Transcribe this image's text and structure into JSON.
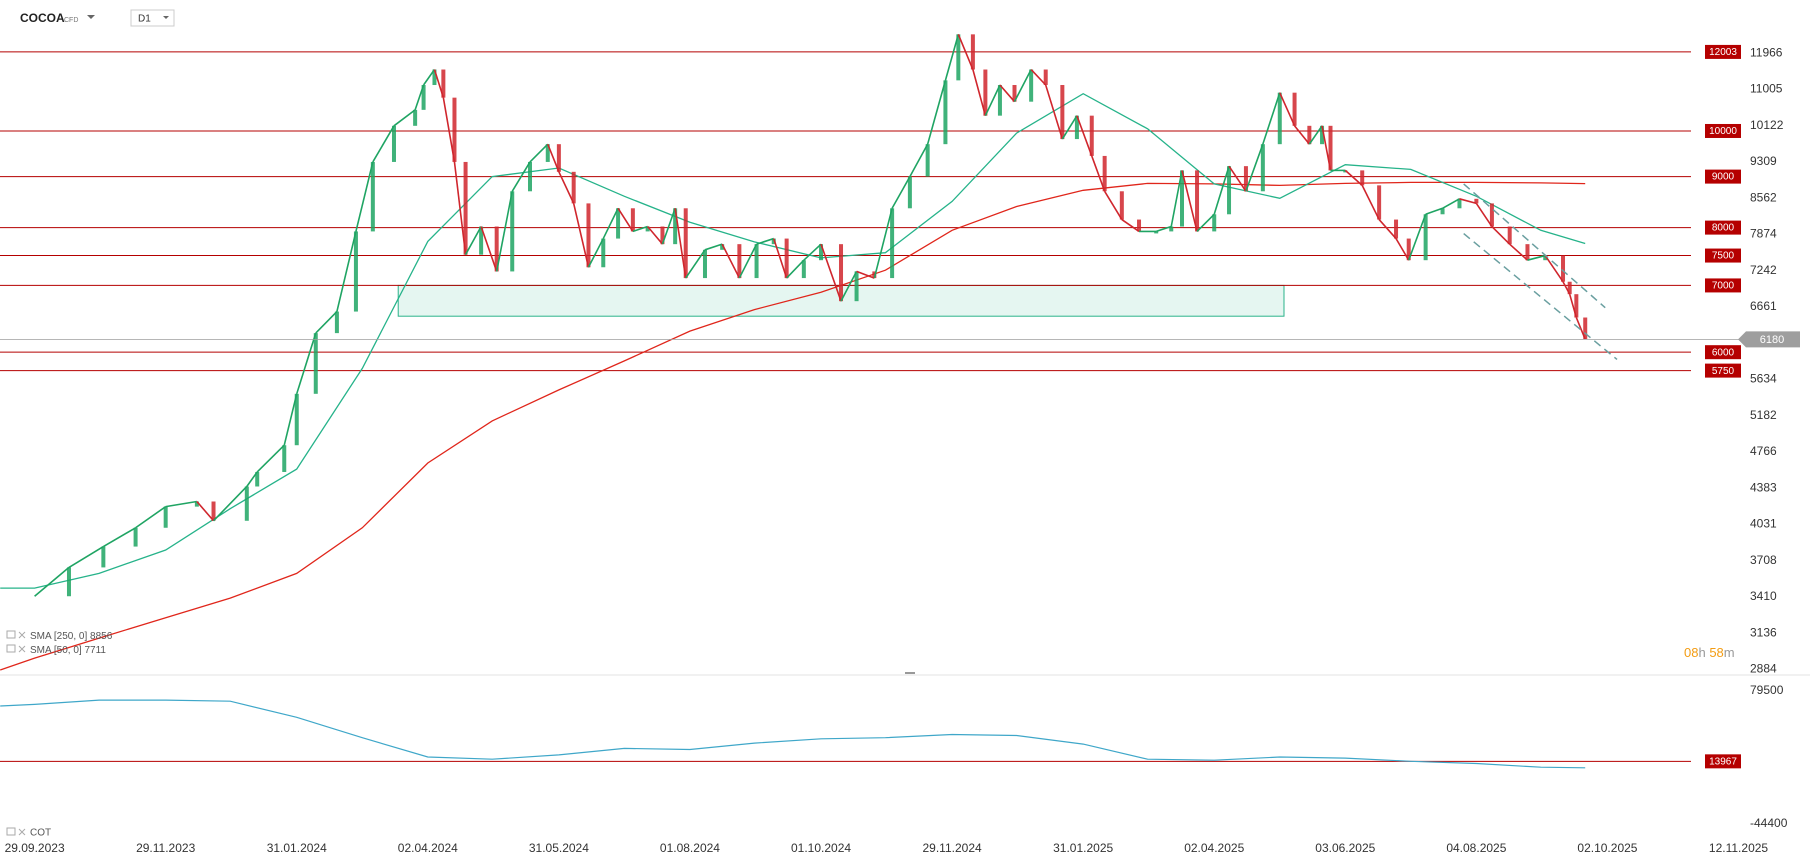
{
  "header": {
    "symbol": "COCOA",
    "instrument": "CFD",
    "timeframe": "D1"
  },
  "countdown": {
    "hours": "08",
    "hours_unit": "h",
    "minutes": "58",
    "minutes_unit": "m"
  },
  "chart_data": [
    {
      "type": "candlestick-line",
      "log_scale": true,
      "ylim": [
        2847,
        13532
      ],
      "yticks": [
        11966,
        11005,
        10122,
        9309,
        8562,
        7874,
        7242,
        6661,
        5634,
        5182,
        4766,
        4383,
        4031,
        3708,
        3410,
        3136,
        2884
      ],
      "xticks": [
        "29.09.2023",
        "29.11.2023",
        "31.01.2024",
        "02.04.2024",
        "31.05.2024",
        "01.08.2024",
        "01.10.2024",
        "29.11.2024",
        "31.01.2025",
        "02.04.2025",
        "03.06.2025",
        "04.08.2025",
        "02.10.2025",
        "12.11.2025"
      ],
      "up_color": "#1fa463",
      "down_color": "#d0262d",
      "last_price": 6180,
      "series": [
        {
          "x": [
            "29.09.2023",
            "15.10.2023",
            "31.10.2023",
            "15.11.2023",
            "29.11.2023",
            "14.12.2023",
            "22.12.2023",
            "07.01.2024",
            "12.01.2024",
            "25.01.2024",
            "31.01.2024",
            "09.02.2024",
            "19.02.2024",
            "28.02.2024",
            "07.03.2024",
            "17.03.2024",
            "27.03.2024",
            "31.03.2024",
            "05.04.2024",
            "09.04.2024",
            "14.04.2024",
            "19.04.2024",
            "26.04.2024",
            "03.05.2024",
            "10.05.2024",
            "18.05.2024",
            "26.05.2024",
            "31.05.2024",
            "07.06.2024",
            "14.06.2024",
            "21.06.2024",
            "28.06.2024",
            "05.07.2024",
            "12.07.2024",
            "19.07.2024",
            "25.07.2024",
            "30.07.2024",
            "08.08.2024",
            "16.08.2024",
            "24.08.2024",
            "01.09.2024",
            "09.09.2024",
            "15.09.2024",
            "23.09.2024",
            "01.10.2024",
            "10.10.2024",
            "17.10.2024",
            "25.10.2024",
            "02.11.2024",
            "10.11.2024",
            "18.11.2024",
            "26.11.2024",
            "02.12.2024",
            "09.12.2024",
            "15.12.2024",
            "22.12.2024",
            "29.12.2024",
            "06.01.2025",
            "13.01.2025",
            "21.01.2025",
            "28.01.2025",
            "04.02.2025",
            "10.02.2025",
            "18.02.2025",
            "26.02.2025",
            "06.03.2025",
            "13.03.2025",
            "18.03.2025",
            "25.03.2025",
            "02.04.2025",
            "09.04.2025",
            "17.04.2025",
            "25.04.2025",
            "03.05.2025",
            "10.05.2025",
            "17.05.2025",
            "23.05.2025",
            "27.05.2025",
            "03.06.2025",
            "11.06.2025",
            "19.06.2025",
            "27.06.2025",
            "03.07.2025",
            "11.07.2025",
            "19.07.2025",
            "27.07.2025",
            "04.08.2025",
            "11.08.2025",
            "19.08.2025",
            "27.08.2025",
            "04.09.2025",
            "12.09.2025",
            "15.09.2025",
            "18.09.2025",
            "22.09.2025"
          ],
          "values": [
            3415,
            3650,
            3830,
            4000,
            4200,
            4250,
            4065,
            4400,
            4550,
            4840,
            5450,
            6270,
            6590,
            7930,
            9310,
            10120,
            10500,
            11120,
            11525,
            10800,
            9310,
            7515,
            8020,
            7230,
            8700,
            9310,
            9700,
            9100,
            8460,
            7300,
            7800,
            8365,
            7930,
            8020,
            7700,
            8365,
            7120,
            7600,
            7700,
            7120,
            7700,
            7800,
            7120,
            7420,
            7700,
            6750,
            7230,
            7120,
            8365,
            9000,
            9700,
            11240,
            12500,
            11525,
            10360,
            11120,
            10700,
            11525,
            11120,
            9815,
            10360,
            9440,
            8700,
            8150,
            7930,
            7930,
            8020,
            9130,
            7930,
            8250,
            9220,
            8700,
            9700,
            10925,
            10120,
            9700,
            10120,
            9130,
            9130,
            8820,
            8150,
            7800,
            7420,
            8250,
            8365,
            8550,
            8460,
            8020,
            7700,
            7420,
            7500,
            7060,
            6860,
            6500,
            6180
          ]
        },
        {
          "name": "SMA [250, 0]",
          "last_value": 8856,
          "color": "#e0261b",
          "x": [
            "13.09.2023",
            "29.09.2023",
            "29.10.2023",
            "29.11.2023",
            "30.12.2023",
            "31.01.2024",
            "02.03.2024",
            "02.04.2024",
            "01.05.2024",
            "31.05.2024",
            "01.07.2024",
            "01.08.2024",
            "31.08.2024",
            "01.10.2024",
            "30.10.2024",
            "29.11.2024",
            "30.12.2024",
            "31.01.2025",
            "02.03.2025",
            "02.04.2025",
            "03.05.2025",
            "03.06.2025",
            "04.07.2025",
            "04.08.2025",
            "02.09.2025",
            "22.09.2025"
          ],
          "values": [
            2880,
            2960,
            3100,
            3250,
            3400,
            3600,
            4000,
            4645,
            5120,
            5500,
            5880,
            6300,
            6620,
            6890,
            7250,
            7950,
            8400,
            8720,
            8860,
            8850,
            8820,
            8860,
            8880,
            8880,
            8870,
            8856
          ]
        },
        {
          "name": "SMA [50, 0]",
          "last_value": 7711,
          "color": "#26b38a",
          "x": [
            "13.09.2023",
            "29.09.2023",
            "29.10.2023",
            "29.11.2023",
            "30.12.2023",
            "31.01.2024",
            "02.03.2024",
            "02.04.2024",
            "01.05.2024",
            "31.05.2024",
            "01.07.2024",
            "01.08.2024",
            "31.08.2024",
            "01.10.2024",
            "30.10.2024",
            "29.11.2024",
            "30.12.2024",
            "31.01.2025",
            "02.03.2025",
            "02.04.2025",
            "03.05.2025",
            "03.06.2025",
            "04.07.2025",
            "04.08.2025",
            "02.09.2025",
            "22.09.2025"
          ],
          "values": [
            3480,
            3480,
            3600,
            3800,
            4180,
            4580,
            5780,
            7750,
            9000,
            9180,
            8600,
            8100,
            7740,
            7460,
            7550,
            8500,
            9950,
            10900,
            10050,
            8850,
            8560,
            9250,
            9150,
            8600,
            7950,
            7711
          ]
        }
      ],
      "levels": [
        {
          "value": 12003,
          "color": "#b50000"
        },
        {
          "value": 10000,
          "color": "#b50000"
        },
        {
          "value": 9000,
          "color": "#b50000"
        },
        {
          "value": 8000,
          "color": "#b50000"
        },
        {
          "value": 7500,
          "color": "#b50000"
        },
        {
          "value": 7000,
          "color": "#b50000"
        },
        {
          "value": 6000,
          "color": "#b50000"
        },
        {
          "value": 5750,
          "color": "#b50000"
        }
      ],
      "zone": {
        "x": [
          "19.03.2024",
          "05.05.2025"
        ],
        "y": [
          6520,
          7000
        ],
        "color": "#2bb38a"
      },
      "channel": [
        {
          "x": [
            "29.07.2025",
            "01.10.2025"
          ],
          "y": [
            8850,
            6650
          ]
        },
        {
          "x": [
            "29.07.2025",
            "05.10.2025"
          ],
          "y": [
            7890,
            5900
          ]
        }
      ],
      "channel_color": "#6a9fa0"
    },
    {
      "type": "line",
      "title": "COT",
      "ylim": [
        -44400,
        79500
      ],
      "yticks": [
        79500,
        -44400
      ],
      "series": [
        {
          "color": "#3fa7c9",
          "x": [
            "13.09.2023",
            "29.09.2023",
            "29.10.2023",
            "29.11.2023",
            "30.12.2023",
            "31.01.2024",
            "02.03.2024",
            "02.04.2024",
            "01.05.2024",
            "31.05.2024",
            "01.07.2024",
            "01.08.2024",
            "31.08.2024",
            "01.10.2024",
            "30.10.2024",
            "29.11.2024",
            "30.12.2024",
            "31.01.2025",
            "02.03.2025",
            "02.04.2025",
            "03.05.2025",
            "03.06.2025",
            "04.07.2025",
            "04.08.2025",
            "02.09.2025",
            "22.09.2025"
          ],
          "values": [
            65500,
            67000,
            71000,
            71000,
            70000,
            55000,
            36000,
            18000,
            16000,
            20000,
            26000,
            25000,
            31000,
            35000,
            36000,
            39000,
            38000,
            30000,
            16000,
            15000,
            18000,
            17000,
            14000,
            12000,
            8500,
            8000
          ]
        }
      ],
      "levels": [
        {
          "value": 13967,
          "color": "#b50000"
        }
      ]
    }
  ]
}
